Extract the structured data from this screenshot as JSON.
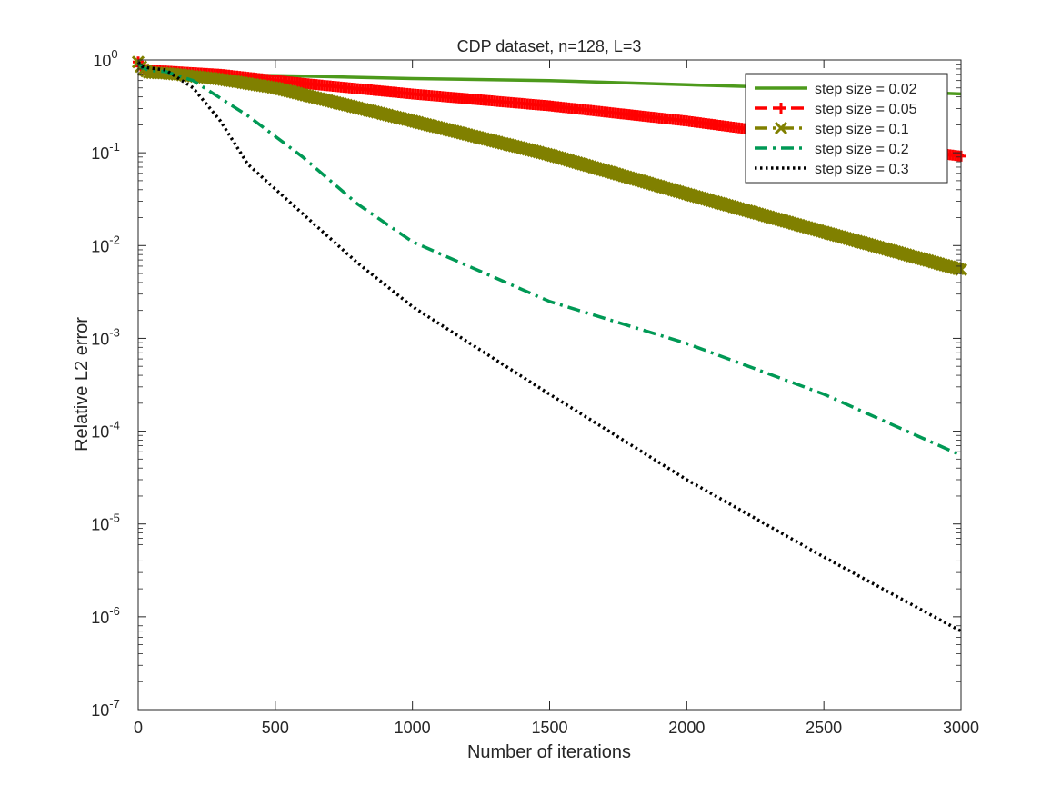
{
  "chart_data": {
    "type": "line",
    "title": "CDP dataset, n=128, L=3",
    "xlabel": "Number of iterations",
    "ylabel": "Relative L2 error",
    "xlim": [
      0,
      3000
    ],
    "ylim": [
      1e-07,
      1
    ],
    "yscale": "log",
    "grid": false,
    "x_ticks": [
      0,
      500,
      1000,
      1500,
      2000,
      2500,
      3000
    ],
    "x_tick_labels": [
      "0",
      "500",
      "1000",
      "1500",
      "2000",
      "2500",
      "3000"
    ],
    "y_ticks": [
      {
        "value": 1,
        "base": "10",
        "exp": "0"
      },
      {
        "value": 0.1,
        "base": "10",
        "exp": "-1"
      },
      {
        "value": 0.01,
        "base": "10",
        "exp": "-2"
      },
      {
        "value": 0.001,
        "base": "10",
        "exp": "-3"
      },
      {
        "value": 0.0001,
        "base": "10",
        "exp": "-4"
      },
      {
        "value": 1e-05,
        "base": "10",
        "exp": "-5"
      },
      {
        "value": 1e-06,
        "base": "10",
        "exp": "-6"
      },
      {
        "value": 1e-07,
        "base": "10",
        "exp": "-7"
      }
    ],
    "legend_position": "top-right",
    "series": [
      {
        "name": "step size = 0.02",
        "color": "#4d9a1c",
        "style": "solid",
        "marker": "none",
        "points": [
          [
            0,
            0.95
          ],
          [
            15,
            0.8
          ],
          [
            30,
            0.74
          ],
          [
            60,
            0.72
          ],
          [
            200,
            0.7
          ],
          [
            600,
            0.67
          ],
          [
            1000,
            0.63
          ],
          [
            1500,
            0.6
          ],
          [
            2000,
            0.54
          ],
          [
            2500,
            0.49
          ],
          [
            3000,
            0.43
          ]
        ]
      },
      {
        "name": "step size = 0.05",
        "color": "#ff0000",
        "style": "dashed",
        "marker": "plus",
        "points": [
          [
            0,
            0.95
          ],
          [
            15,
            0.82
          ],
          [
            40,
            0.77
          ],
          [
            100,
            0.76
          ],
          [
            300,
            0.7
          ],
          [
            600,
            0.56
          ],
          [
            1000,
            0.43
          ],
          [
            1500,
            0.32
          ],
          [
            2000,
            0.22
          ],
          [
            2500,
            0.14
          ],
          [
            3000,
            0.092
          ]
        ]
      },
      {
        "name": "step size = 0.1",
        "color": "#808000",
        "style": "dashdot",
        "marker": "x",
        "points": [
          [
            0,
            0.95
          ],
          [
            15,
            0.8
          ],
          [
            40,
            0.73
          ],
          [
            100,
            0.72
          ],
          [
            300,
            0.62
          ],
          [
            500,
            0.5
          ],
          [
            700,
            0.36
          ],
          [
            1000,
            0.22
          ],
          [
            1500,
            0.095
          ],
          [
            2000,
            0.036
          ],
          [
            2500,
            0.014
          ],
          [
            3000,
            0.0055
          ]
        ]
      },
      {
        "name": "step size = 0.2",
        "color": "#009955",
        "style": "dashdot",
        "marker": "none",
        "points": [
          [
            0,
            0.95
          ],
          [
            15,
            0.83
          ],
          [
            40,
            0.77
          ],
          [
            100,
            0.75
          ],
          [
            200,
            0.6
          ],
          [
            400,
            0.25
          ],
          [
            600,
            0.09
          ],
          [
            800,
            0.028
          ],
          [
            1000,
            0.011
          ],
          [
            1500,
            0.0025
          ],
          [
            2000,
            0.00088
          ],
          [
            2500,
            0.00025
          ],
          [
            3000,
            5.5e-05
          ]
        ]
      },
      {
        "name": "step size = 0.3",
        "color": "#000000",
        "style": "dotted",
        "marker": "none",
        "points": [
          [
            0,
            0.95
          ],
          [
            15,
            0.85
          ],
          [
            40,
            0.82
          ],
          [
            100,
            0.78
          ],
          [
            200,
            0.5
          ],
          [
            300,
            0.22
          ],
          [
            400,
            0.075
          ],
          [
            600,
            0.022
          ],
          [
            800,
            0.0065
          ],
          [
            1000,
            0.0022
          ],
          [
            1500,
            0.00025
          ],
          [
            2000,
            3e-05
          ],
          [
            2500,
            4.4e-06
          ],
          [
            3000,
            7e-07
          ]
        ]
      }
    ]
  }
}
